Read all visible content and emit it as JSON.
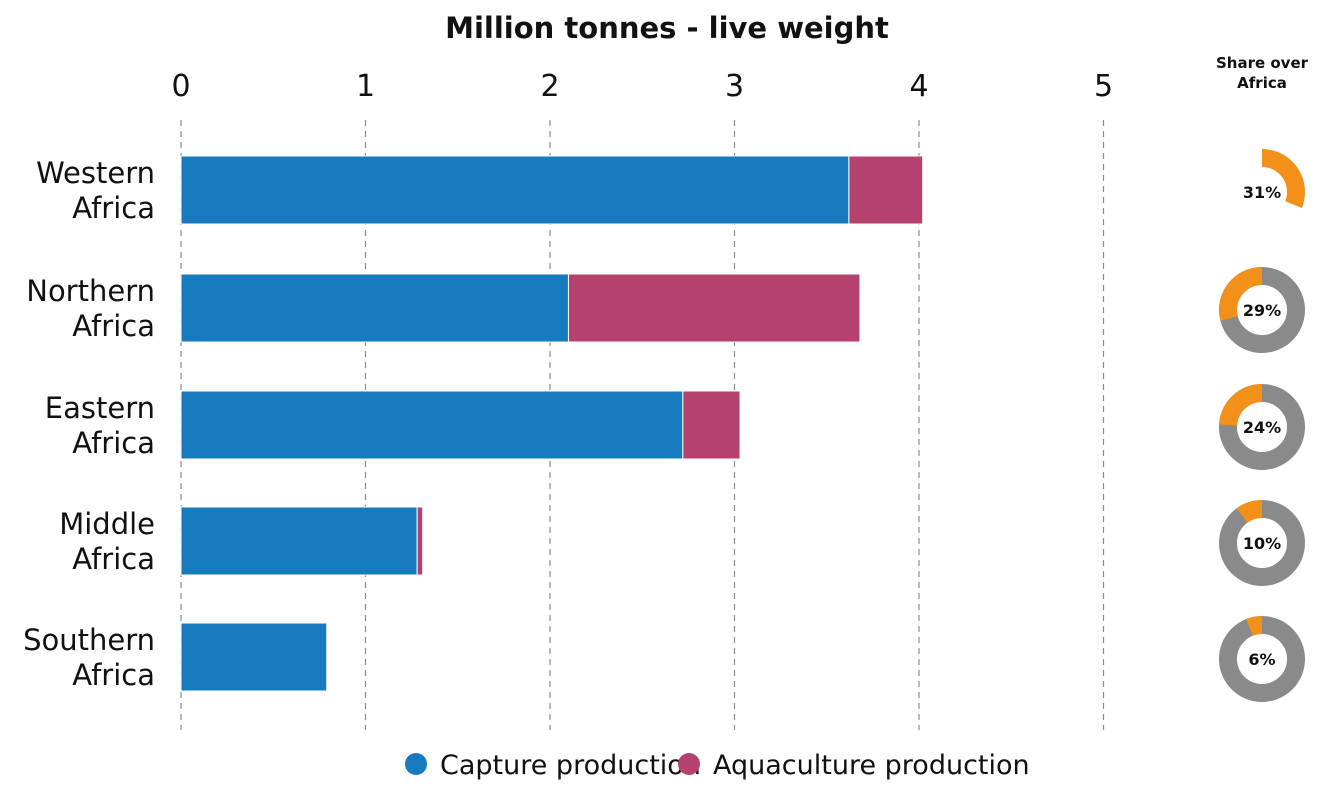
{
  "chart_data": {
    "type": "bar",
    "orientation": "horizontal",
    "stacked": true,
    "title": "Million tonnes - live weight",
    "xlim": [
      0,
      5
    ],
    "xticks": [
      "0",
      "1",
      "2",
      "3",
      "4",
      "5"
    ],
    "grid": true,
    "categories": [
      [
        "Western",
        "Africa"
      ],
      [
        "Northern",
        "Africa"
      ],
      [
        "Eastern",
        "Africa"
      ],
      [
        "Middle",
        "Africa"
      ],
      [
        "Southern",
        "Africa"
      ]
    ],
    "series": [
      {
        "name": "Capture production",
        "color": "#1779be",
        "values": [
          3.62,
          2.1,
          2.72,
          1.28,
          0.79
        ]
      },
      {
        "name": "Aquaculture production",
        "color": "#b5426e",
        "values": [
          0.4,
          1.58,
          0.31,
          0.03,
          0.0
        ]
      }
    ],
    "legend_position": "bottom-center",
    "share": {
      "title": [
        "Share over",
        "Africa"
      ],
      "values": [
        31,
        29,
        24,
        10,
        6
      ],
      "labels": [
        "31%",
        "29%",
        "24%",
        "10%",
        "6%"
      ],
      "share_color": "#f39019",
      "rest_color": "#8a8a8a"
    }
  }
}
